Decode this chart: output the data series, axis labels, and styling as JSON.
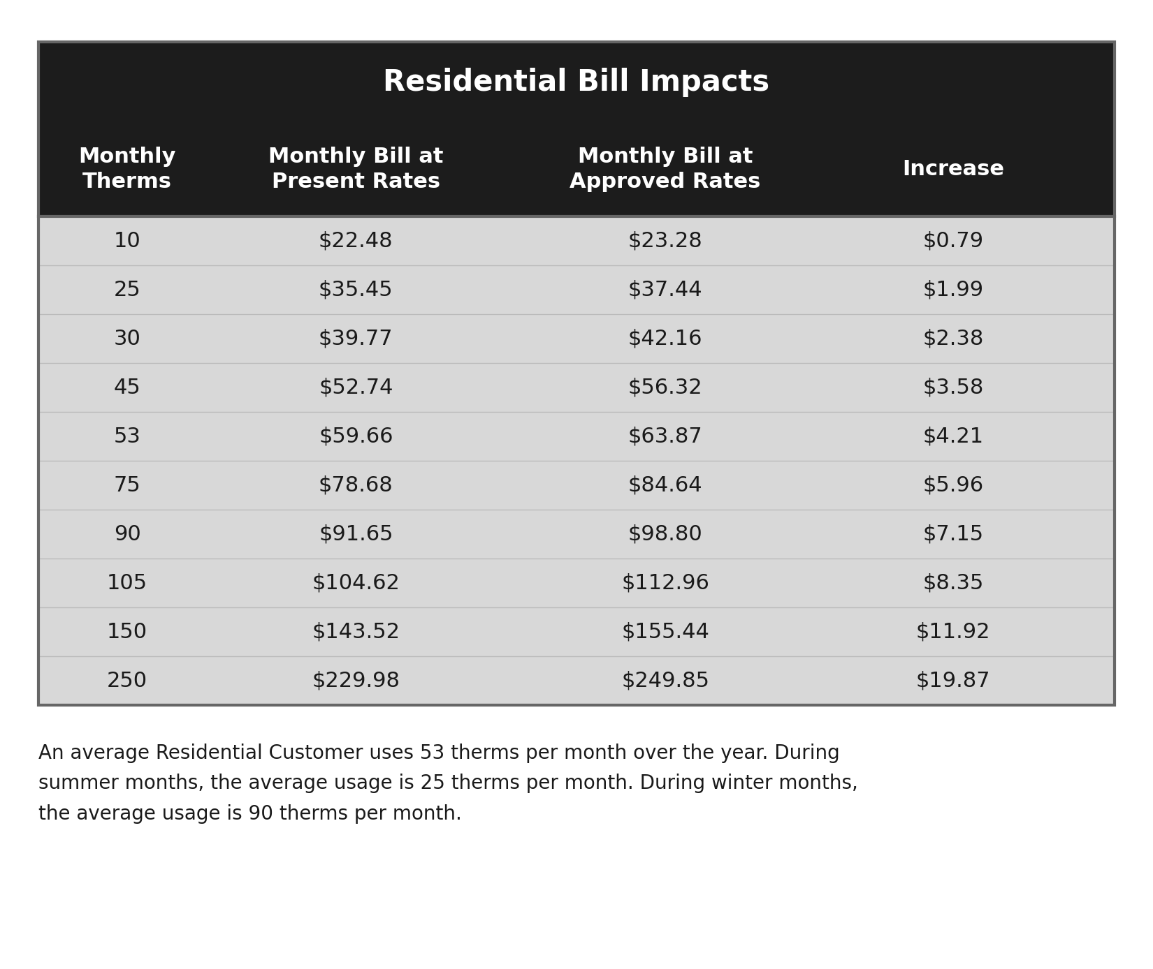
{
  "title": "Residential Bill Impacts",
  "col_headers": [
    "Monthly\nTherms",
    "Monthly Bill at\nPresent Rates",
    "Monthly Bill at\nApproved Rates",
    "Increase"
  ],
  "rows": [
    [
      "10",
      "$22.48",
      "$23.28",
      "$0.79"
    ],
    [
      "25",
      "$35.45",
      "$37.44",
      "$1.99"
    ],
    [
      "30",
      "$39.77",
      "$42.16",
      "$2.38"
    ],
    [
      "45",
      "$52.74",
      "$56.32",
      "$3.58"
    ],
    [
      "53",
      "$59.66",
      "$63.87",
      "$4.21"
    ],
    [
      "75",
      "$78.68",
      "$84.64",
      "$5.96"
    ],
    [
      "90",
      "$91.65",
      "$98.80",
      "$7.15"
    ],
    [
      "105",
      "$104.62",
      "$112.96",
      "$8.35"
    ],
    [
      "150",
      "$143.52",
      "$155.44",
      "$11.92"
    ],
    [
      "250",
      "$229.98",
      "$249.85",
      "$19.87"
    ]
  ],
  "footnote": "An average Residential Customer uses 53 therms per month over the year. During\nsummer months, the average usage is 25 therms per month. During winter months,\nthe average usage is 90 therms per month.",
  "header_bg": "#1c1c1c",
  "header_text_color": "#ffffff",
  "row_bg": "#d8d8d8",
  "body_text_color": "#1a1a1a",
  "title_fontsize": 30,
  "header_fontsize": 22,
  "cell_fontsize": 22,
  "footnote_fontsize": 20,
  "outer_border_color": "#666666",
  "outer_border_lw": 3.0,
  "divider_color": "#bbbbbb",
  "divider_lw": 1.0
}
